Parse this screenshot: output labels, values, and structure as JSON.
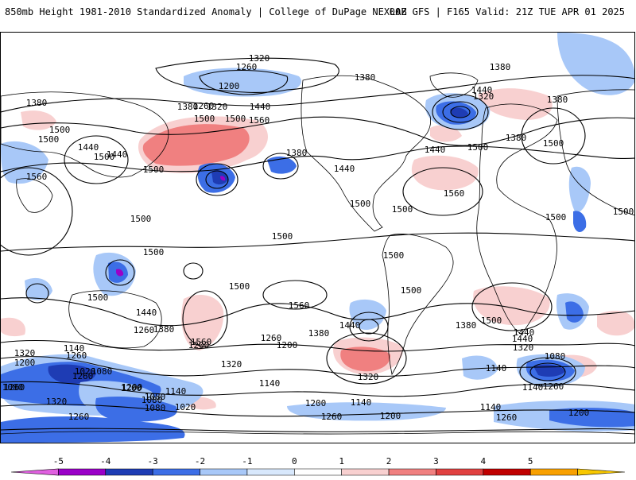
{
  "header": {
    "left": "850mb Height 1981-2010 Standardized Anomaly | College of DuPage NEXLAB",
    "right": "00Z GFS | F165 Valid: 21Z TUE APR 01 2025"
  },
  "colorbar": {
    "ticks": [
      "-5",
      "-4",
      "-3",
      "-2",
      "-1",
      "0",
      "1",
      "2",
      "3",
      "4",
      "5"
    ],
    "colors": [
      "#e060e0",
      "#9a00c8",
      "#1e3cb4",
      "#3c6ee6",
      "#a8c8f8",
      "#d8e8fc",
      "#ffffff",
      "#f8d0d0",
      "#f08080",
      "#e04040",
      "#c00000",
      "#f8a000",
      "#f8c800"
    ]
  },
  "contours": {
    "labels": [
      "1320",
      "1380",
      "1260",
      "1200",
      "1380",
      "1440",
      "1320",
      "1380",
      "1260",
      "1380",
      "1380",
      "1500",
      "1320",
      "1500",
      "1560",
      "1440",
      "1500",
      "1500",
      "1440",
      "1560",
      "1440",
      "1500",
      "1500",
      "1380",
      "1440",
      "1500",
      "1440",
      "1380",
      "1500",
      "1560",
      "1500",
      "1500",
      "1500",
      "1500",
      "1500",
      "1500",
      "1500",
      "1500",
      "1500",
      "1440",
      "1500",
      "1560",
      "1500",
      "1380",
      "1440",
      "1560",
      "1260",
      "1440",
      "1320",
      "1320",
      "1260",
      "1200",
      "1260",
      "1320",
      "1140",
      "1200",
      "1380",
      "1440",
      "1380",
      "1200",
      "1320",
      "1140",
      "1080",
      "1020",
      "1260",
      "1080",
      "1140",
      "1080",
      "1200",
      "1020",
      "1080",
      "1140",
      "1200",
      "1260",
      "1140",
      "1080",
      "1200",
      "1260",
      "1260",
      "1320",
      "1200",
      "1140",
      "1260",
      "1140",
      "1200",
      "1080",
      "1500",
      "1260"
    ]
  }
}
